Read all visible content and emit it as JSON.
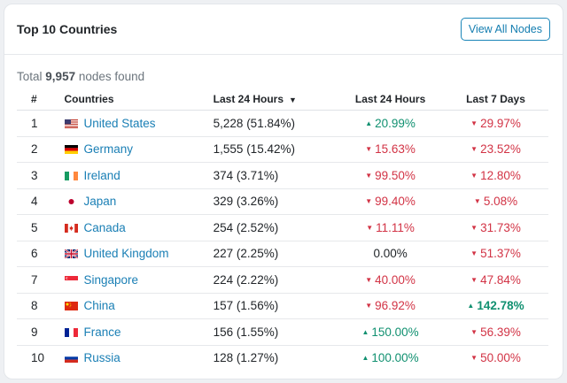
{
  "header": {
    "title": "Top 10 Countries",
    "view_all_label": "View All Nodes"
  },
  "summary": {
    "prefix": "Total",
    "count": "9,957",
    "suffix": "nodes found"
  },
  "table": {
    "columns": [
      "#",
      "Countries",
      "Last 24 Hours",
      "Last 24 Hours",
      "Last 7 Days"
    ],
    "sort_icon": "caret-down-icon",
    "rows": [
      {
        "rank": "1",
        "country": "United States",
        "flag": "us",
        "nodes": "5,228 (51.84%)",
        "change_24h": "20.99%",
        "dir_24h": "up",
        "change_7d": "29.97%",
        "dir_7d": "down"
      },
      {
        "rank": "2",
        "country": "Germany",
        "flag": "de",
        "nodes": "1,555 (15.42%)",
        "change_24h": "15.63%",
        "dir_24h": "down",
        "change_7d": "23.52%",
        "dir_7d": "down"
      },
      {
        "rank": "3",
        "country": "Ireland",
        "flag": "ie",
        "nodes": "374 (3.71%)",
        "change_24h": "99.50%",
        "dir_24h": "down",
        "change_7d": "12.80%",
        "dir_7d": "down"
      },
      {
        "rank": "4",
        "country": "Japan",
        "flag": "jp",
        "nodes": "329 (3.26%)",
        "change_24h": "99.40%",
        "dir_24h": "down",
        "change_7d": "5.08%",
        "dir_7d": "down"
      },
      {
        "rank": "5",
        "country": "Canada",
        "flag": "ca",
        "nodes": "254 (2.52%)",
        "change_24h": "11.11%",
        "dir_24h": "down",
        "change_7d": "31.73%",
        "dir_7d": "down"
      },
      {
        "rank": "6",
        "country": "United Kingdom",
        "flag": "gb",
        "nodes": "227 (2.25%)",
        "change_24h": "0.00%",
        "dir_24h": "flat",
        "change_7d": "51.37%",
        "dir_7d": "down"
      },
      {
        "rank": "7",
        "country": "Singapore",
        "flag": "sg",
        "nodes": "224 (2.22%)",
        "change_24h": "40.00%",
        "dir_24h": "down",
        "change_7d": "47.84%",
        "dir_7d": "down"
      },
      {
        "rank": "8",
        "country": "China",
        "flag": "cn",
        "nodes": "157 (1.56%)",
        "change_24h": "96.92%",
        "dir_24h": "down",
        "change_7d": "142.78%",
        "dir_7d": "up-bold"
      },
      {
        "rank": "9",
        "country": "France",
        "flag": "fr",
        "nodes": "156 (1.55%)",
        "change_24h": "150.00%",
        "dir_24h": "up",
        "change_7d": "56.39%",
        "dir_7d": "down"
      },
      {
        "rank": "10",
        "country": "Russia",
        "flag": "ru",
        "nodes": "128 (1.27%)",
        "change_24h": "100.00%",
        "dir_24h": "up",
        "change_7d": "50.00%",
        "dir_7d": "down"
      }
    ]
  },
  "colors": {
    "up": "#109070",
    "down": "#d23345",
    "link": "#1a7fb5"
  },
  "icons": {
    "up": "▲",
    "down": "▼"
  }
}
